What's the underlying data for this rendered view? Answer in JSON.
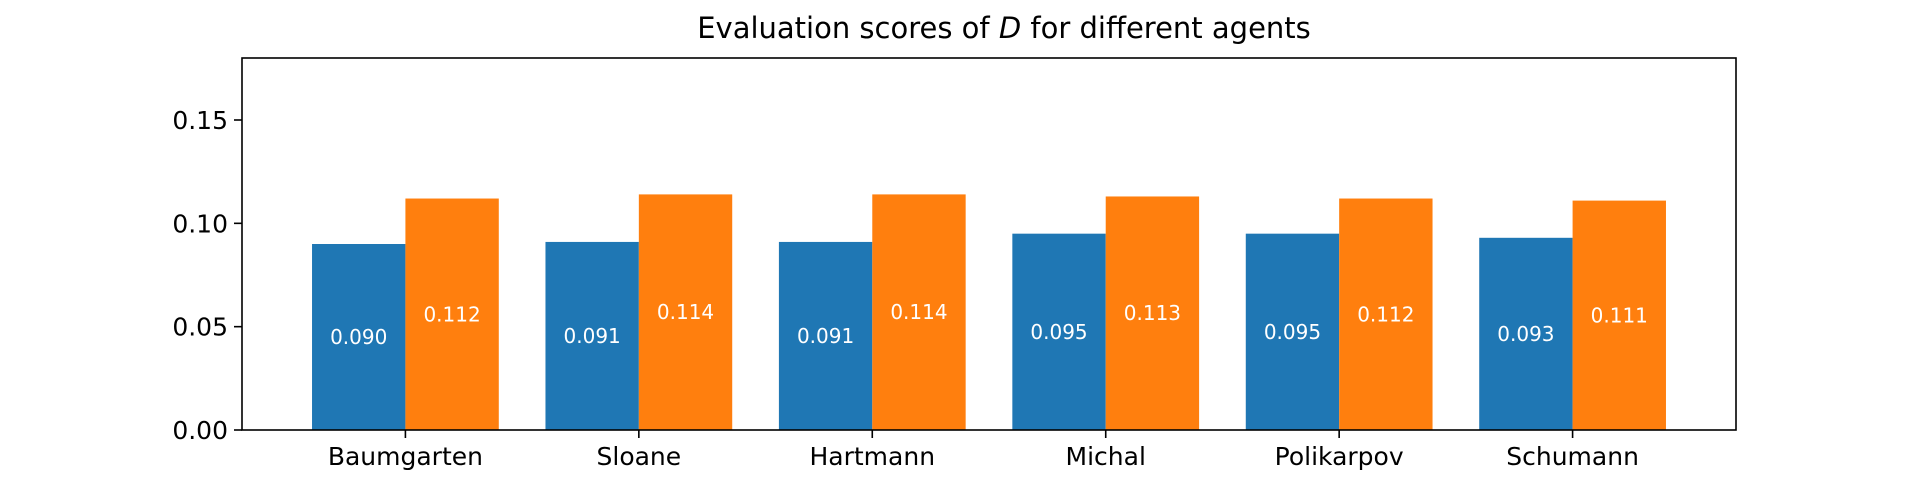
{
  "chart_data": {
    "type": "bar",
    "title": {
      "prefix": "Evaluation scores of ",
      "italic": "D",
      "suffix": " for different agents"
    },
    "categories": [
      "Baumgarten",
      "Sloane",
      "Hartmann",
      "Michal",
      "Polikarpov",
      "Schumann"
    ],
    "series": [
      {
        "color": "#1f77b4",
        "values": [
          0.09,
          0.091,
          0.091,
          0.095,
          0.095,
          0.093
        ],
        "labels": [
          "0.090",
          "0.091",
          "0.091",
          "0.095",
          "0.095",
          "0.093"
        ]
      },
      {
        "color": "#ff7f0e",
        "values": [
          0.112,
          0.114,
          0.114,
          0.113,
          0.112,
          0.111
        ],
        "labels": [
          "0.112",
          "0.114",
          "0.114",
          "0.113",
          "0.112",
          "0.111"
        ]
      }
    ],
    "ylim": [
      0,
      0.18
    ],
    "yticks": [
      0.0,
      0.05,
      0.1,
      0.15
    ],
    "ytick_labels": [
      "0.00",
      "0.05",
      "0.10",
      "0.15"
    ],
    "grid": false,
    "legend": "none"
  }
}
